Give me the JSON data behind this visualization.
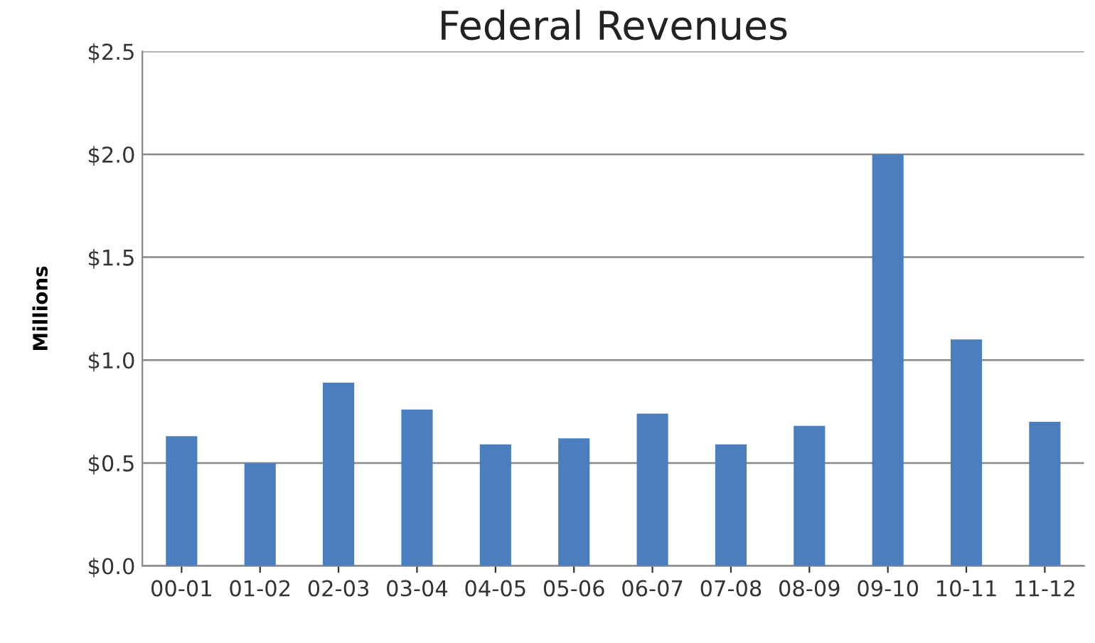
{
  "chart_data": {
    "type": "bar",
    "title": "Federal Revenues",
    "ylabel": "Millions",
    "categories": [
      "00-01",
      "01-02",
      "02-03",
      "03-04",
      "04-05",
      "05-06",
      "06-07",
      "07-08",
      "08-09",
      "09-10",
      "10-11",
      "11-12"
    ],
    "values": [
      0.63,
      0.5,
      0.89,
      0.76,
      0.59,
      0.62,
      0.74,
      0.59,
      0.68,
      2.0,
      1.1,
      0.7
    ],
    "color": "#4a7ebf",
    "ylim": [
      0,
      2.5
    ],
    "yticks": [
      {
        "value": 0,
        "label": "$0.0"
      },
      {
        "value": 0.5,
        "label": "$0.5"
      },
      {
        "value": 1.0,
        "label": "$1.0"
      },
      {
        "value": 1.5,
        "label": "$1.5"
      },
      {
        "value": 2.0,
        "label": "$2.0"
      },
      {
        "value": 2.5,
        "label": "$2.5"
      }
    ],
    "grid": "y",
    "legend": false
  }
}
